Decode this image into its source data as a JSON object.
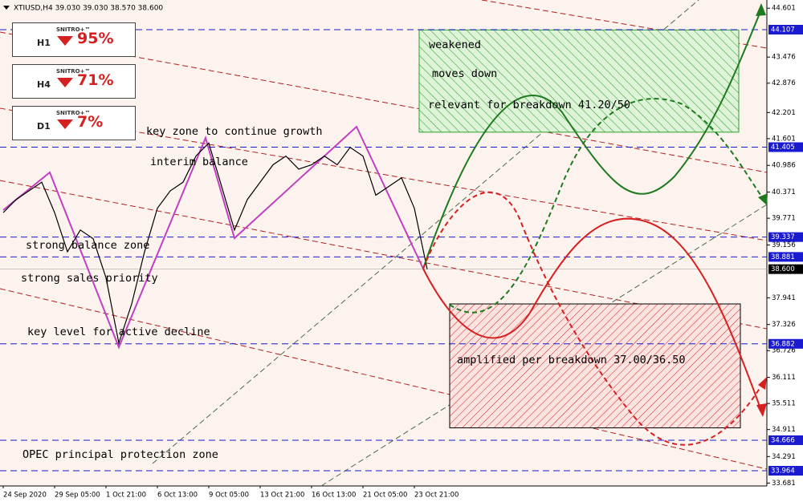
{
  "header": "XTIUSD,H4  39.030 39.030 38.570 38.600",
  "signals": [
    {
      "timeframe": "H1",
      "brand": "SNITRO+™",
      "value": "95%"
    },
    {
      "timeframe": "H4",
      "brand": "SNITRO+™",
      "value": "71%"
    },
    {
      "timeframe": "D1",
      "brand": "SNITRO+™",
      "value": "7%"
    }
  ],
  "chart_data": {
    "type": "line",
    "categories": [
      "24 Sep 2020",
      null,
      null,
      null,
      "29 Sep 05:00",
      null,
      null,
      null,
      "1 Oct 21:00",
      null,
      null,
      null,
      "6 Oct 13:00",
      null,
      null,
      null,
      "9 Oct 05:00",
      null,
      null,
      null,
      "13 Oct 21:00",
      null,
      null,
      null,
      "16 Oct 13:00",
      null,
      null,
      null,
      "21 Oct 05:00",
      null,
      null,
      null,
      "23 Oct 21:00",
      null
    ],
    "values": [
      39.9,
      40.2,
      40.4,
      40.6,
      39.9,
      39.0,
      39.5,
      39.3,
      38.4,
      36.9,
      37.8,
      39.0,
      40.0,
      40.4,
      40.6,
      41.2,
      41.5,
      40.5,
      39.5,
      40.2,
      40.6,
      41.0,
      41.2,
      40.9,
      41.0,
      41.2,
      41.0,
      41.4,
      41.2,
      40.3,
      40.5,
      40.7,
      40.0,
      38.6
    ],
    "color": "#000000",
    "ylim": [
      33.614,
      44.789
    ],
    "yticks": [
      44.601,
      43.476,
      42.876,
      42.201,
      41.601,
      40.986,
      40.371,
      39.771,
      39.156,
      37.941,
      37.326,
      36.726,
      36.111,
      35.511,
      34.911,
      34.291,
      33.681
    ],
    "levels": [
      44.107,
      41.405,
      39.337,
      38.881,
      36.882,
      34.666,
      33.964
    ],
    "level_color": "#1a1ad0",
    "current_price": {
      "value": 38.6,
      "label": "38.600"
    },
    "annotations": [
      "key zone to continue growth",
      "interim balance",
      "strong balance zone",
      "strong sales priority",
      "key level for active decline",
      "OPEC principal protection zone"
    ],
    "zones": [
      {
        "color": "#2ca02c",
        "ylim": [
          41.75,
          44.1
        ],
        "texts": [
          "weakened",
          "moves down",
          "relevant for breakdown 41.20/50"
        ]
      },
      {
        "color": "#d62020",
        "ylim": [
          34.95,
          37.8
        ],
        "texts": [
          "amplified per breakdown 37.00/36.50"
        ]
      }
    ]
  }
}
